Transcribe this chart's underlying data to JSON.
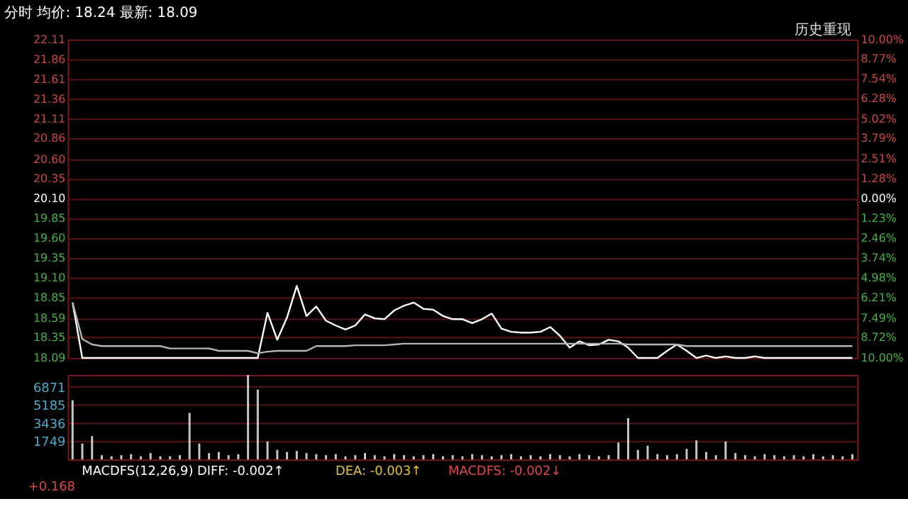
{
  "chart_data": [
    {
      "type": "line",
      "title": "分时 均价: 18.24 最新: 18.09",
      "annotations": [
        "历史重现"
      ],
      "tick_labels": "y",
      "grid": "y",
      "categories": [
        null,
        null,
        null,
        null,
        null,
        null,
        null,
        null,
        null,
        null,
        null,
        null,
        null,
        null,
        null,
        null,
        null,
        null,
        null,
        null,
        null,
        null,
        null,
        null,
        null,
        null,
        null,
        null,
        null,
        null,
        null,
        null,
        null,
        null,
        null,
        null,
        null,
        null,
        null,
        null,
        null,
        null,
        null,
        null,
        null,
        null,
        null,
        null,
        null,
        null,
        null,
        null,
        null,
        null,
        null,
        null,
        null,
        null,
        null,
        null,
        null,
        null,
        null,
        null,
        null,
        null,
        null,
        null,
        null,
        null,
        null,
        null,
        null,
        null,
        null,
        null,
        null,
        null,
        null,
        null,
        null
      ],
      "ylim": [
        18.09,
        22.11
      ],
      "yticks": [
        {
          "value": 18.09,
          "label": "18.09"
        },
        {
          "value": 18.35,
          "label": "18.35"
        },
        {
          "value": 18.59,
          "label": "18.59"
        },
        {
          "value": 18.85,
          "label": "18.85"
        },
        {
          "value": 19.1,
          "label": "19.10"
        },
        {
          "value": 19.35,
          "label": "19.35"
        },
        {
          "value": 19.6,
          "label": "19.60"
        },
        {
          "value": 19.85,
          "label": "19.85"
        },
        {
          "value": 20.1,
          "label": "20.10"
        },
        {
          "value": 20.35,
          "label": "20.35"
        },
        {
          "value": 20.6,
          "label": "20.60"
        },
        {
          "value": 20.86,
          "label": "20.86"
        },
        {
          "value": 21.11,
          "label": "21.11"
        },
        {
          "value": 21.36,
          "label": "21.36"
        },
        {
          "value": 21.61,
          "label": "21.61"
        },
        {
          "value": 21.86,
          "label": "21.86"
        },
        {
          "value": 22.11,
          "label": "22.11"
        }
      ],
      "y2lim": [
        -10,
        10
      ],
      "y2ticks": [
        {
          "value": -10,
          "label": "10.00%"
        },
        {
          "value": -8.72,
          "label": "8.72%"
        },
        {
          "value": -7.49,
          "label": "7.49%"
        },
        {
          "value": -6.21,
          "label": "6.21%"
        },
        {
          "value": -4.98,
          "label": "4.98%"
        },
        {
          "value": -3.74,
          "label": "3.74%"
        },
        {
          "value": -2.46,
          "label": "2.46%"
        },
        {
          "value": -1.23,
          "label": "1.23%"
        },
        {
          "value": 0,
          "label": "0.00%"
        },
        {
          "value": 1.28,
          "label": "1.28%"
        },
        {
          "value": 2.51,
          "label": "2.51%"
        },
        {
          "value": 3.79,
          "label": "3.79%"
        },
        {
          "value": 5.02,
          "label": "5.02%"
        },
        {
          "value": 6.28,
          "label": "6.28%"
        },
        {
          "value": 7.54,
          "label": "7.54%"
        },
        {
          "value": 8.77,
          "label": "8.77%"
        },
        {
          "value": 10,
          "label": "10.00%"
        }
      ],
      "series": [
        {
          "color": "#ffffff",
          "values": [
            18.79,
            18.09,
            18.09,
            18.09,
            18.09,
            18.09,
            18.09,
            18.09,
            18.09,
            18.09,
            18.09,
            18.09,
            18.09,
            18.09,
            18.09,
            18.09,
            18.09,
            18.09,
            18.09,
            18.09,
            18.66,
            18.32,
            18.6,
            19.0,
            18.62,
            18.74,
            18.56,
            18.5,
            18.45,
            18.5,
            18.64,
            18.59,
            18.58,
            18.69,
            18.75,
            18.79,
            18.71,
            18.7,
            18.62,
            18.58,
            18.58,
            18.53,
            18.58,
            18.65,
            18.46,
            18.42,
            18.41,
            18.41,
            18.42,
            18.48,
            18.37,
            18.22,
            18.3,
            18.25,
            18.26,
            18.32,
            18.3,
            18.22,
            18.09,
            18.09,
            18.09,
            18.18,
            18.26,
            18.18,
            18.09,
            18.12,
            18.09,
            18.11,
            18.09,
            18.09,
            18.11,
            18.09,
            18.09,
            18.09,
            18.09,
            18.09,
            18.09,
            18.09,
            18.09,
            18.09,
            18.09
          ]
        },
        {
          "color": "#b4b4b4",
          "values": [
            18.79,
            18.33,
            18.26,
            18.24,
            18.24,
            18.24,
            18.24,
            18.24,
            18.24,
            18.24,
            18.21,
            18.21,
            18.21,
            18.21,
            18.21,
            18.18,
            18.18,
            18.18,
            18.18,
            18.15,
            18.17,
            18.18,
            18.18,
            18.18,
            18.18,
            18.24,
            18.24,
            18.24,
            18.24,
            18.25,
            18.25,
            18.25,
            18.25,
            18.26,
            18.27,
            18.27,
            18.27,
            18.27,
            18.27,
            18.27,
            18.27,
            18.27,
            18.27,
            18.27,
            18.27,
            18.27,
            18.27,
            18.27,
            18.27,
            18.27,
            18.27,
            18.27,
            18.27,
            18.27,
            18.27,
            18.27,
            18.27,
            18.26,
            18.26,
            18.26,
            18.26,
            18.26,
            18.26,
            18.24,
            18.24,
            18.24,
            18.24,
            18.24,
            18.24,
            18.24,
            18.24,
            18.24,
            18.24,
            18.24,
            18.24,
            18.24,
            18.24,
            18.24,
            18.24,
            18.24,
            18.24
          ]
        }
      ]
    },
    {
      "type": "bar",
      "tick_labels": "y",
      "grid": "y",
      "annotations": [
        "MACDFS(12,26,9) DIFF: -0.002↑",
        "DEA: -0.003↑",
        "MACDFS: -0.002↓",
        "+0.168"
      ],
      "categories": [
        null,
        null,
        null,
        null,
        null,
        null,
        null,
        null,
        null,
        null,
        null,
        null,
        null,
        null,
        null,
        null,
        null,
        null,
        null,
        null,
        null,
        null,
        null,
        null,
        null,
        null,
        null,
        null,
        null,
        null,
        null,
        null,
        null,
        null,
        null,
        null,
        null,
        null,
        null,
        null,
        null,
        null,
        null,
        null,
        null,
        null,
        null,
        null,
        null,
        null,
        null,
        null,
        null,
        null,
        null,
        null,
        null,
        null,
        null,
        null,
        null,
        null,
        null,
        null,
        null,
        null,
        null,
        null,
        null,
        null,
        null,
        null,
        null,
        null,
        null,
        null,
        null,
        null,
        null,
        null,
        null
      ],
      "ylim": [
        0,
        8000
      ],
      "yticks": [
        1749,
        3436,
        5185,
        6871
      ],
      "color": "#c8c8c8",
      "values": [
        5600,
        1500,
        2200,
        400,
        300,
        400,
        500,
        300,
        600,
        300,
        300,
        400,
        4400,
        1500,
        600,
        700,
        400,
        500,
        8000,
        6600,
        1700,
        900,
        700,
        800,
        600,
        500,
        400,
        500,
        300,
        400,
        600,
        400,
        300,
        500,
        400,
        300,
        400,
        500,
        300,
        400,
        300,
        500,
        400,
        300,
        400,
        500,
        300,
        400,
        300,
        500,
        400,
        300,
        500,
        400,
        300,
        400,
        1600,
        3900,
        900,
        1300,
        500,
        400,
        500,
        1000,
        1800,
        700,
        400,
        1700,
        600,
        400,
        300,
        500,
        400,
        300,
        400,
        300,
        500,
        300,
        400,
        300,
        500
      ]
    }
  ]
}
